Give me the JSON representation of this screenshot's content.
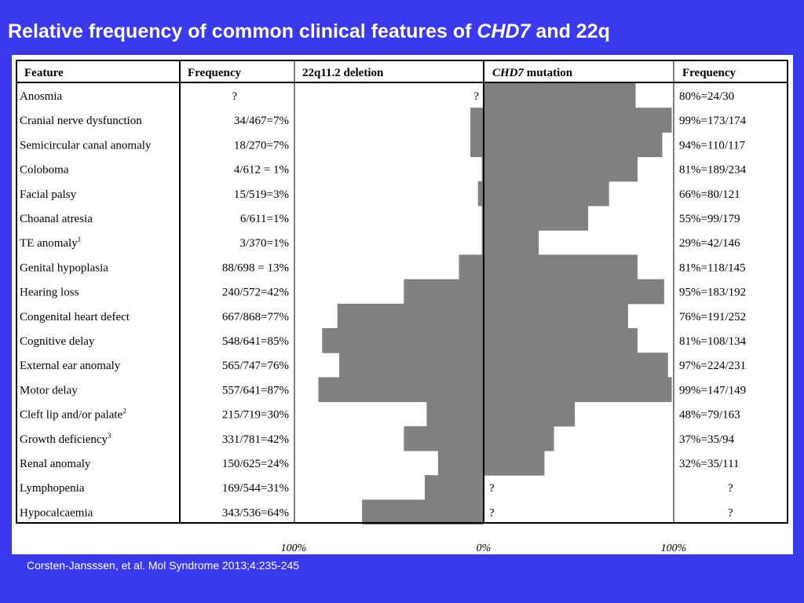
{
  "slide": {
    "title_main": "Relative frequency of common clinical features of ",
    "title_italic": "CHD7",
    "title_end": " and 22q",
    "citation": "Corsten-Jansssen, et al. Mol Syndrome 2013;4:235-245"
  },
  "table": {
    "headers": {
      "feature": "Feature",
      "freq_left": "Frequency",
      "deletion": "22q11.2 deletion",
      "mutation_italic": "CHD7",
      "mutation_rest": " mutation",
      "freq_right": "Frequency"
    },
    "axis_labels": [
      "100%",
      "0%",
      "100%"
    ]
  },
  "chart_data": {
    "type": "bar",
    "title": "Relative frequency of common clinical features of CHD7 and 22q",
    "orientation": "horizontal-butterfly",
    "xlim": [
      -100,
      100
    ],
    "axis_ticks": [
      "100%",
      "0%",
      "100%"
    ],
    "categories": [
      {
        "feature": "Anosmia",
        "sup": ""
      },
      {
        "feature": "Cranial nerve dysfunction",
        "sup": ""
      },
      {
        "feature": "Semicircular canal anomaly",
        "sup": ""
      },
      {
        "feature": "Coloboma",
        "sup": ""
      },
      {
        "feature": "Facial palsy",
        "sup": ""
      },
      {
        "feature": "Choanal atresia",
        "sup": ""
      },
      {
        "feature": "TE anomaly",
        "sup": "1"
      },
      {
        "feature": "Genital hypoplasia",
        "sup": ""
      },
      {
        "feature": "Hearing loss",
        "sup": ""
      },
      {
        "feature": "Congenital heart defect",
        "sup": ""
      },
      {
        "feature": "Cognitive delay",
        "sup": ""
      },
      {
        "feature": "External ear anomaly",
        "sup": ""
      },
      {
        "feature": "Motor delay",
        "sup": ""
      },
      {
        "feature": "Cleft lip and/or palate",
        "sup": "2"
      },
      {
        "feature": "Growth deficiency",
        "sup": "3"
      },
      {
        "feature": "Renal anomaly",
        "sup": ""
      },
      {
        "feature": "Lymphopenia",
        "sup": ""
      },
      {
        "feature": "Hypocalcaemia",
        "sup": ""
      }
    ],
    "series": [
      {
        "name": "22q11.2 deletion",
        "side": "left",
        "labels": [
          "?",
          "34/467=7%",
          "18/270=7%",
          "4/612 = 1%",
          "15/519=3%",
          "6/611=1%",
          "3/370=1%",
          "88/698 = 13%",
          "240/572=42%",
          "667/868=77%",
          "548/641=85%",
          "565/747=76%",
          "557/641=87%",
          "215/719=30%",
          "331/781=42%",
          "150/625=24%",
          "169/544=31%",
          "343/536=64%"
        ],
        "values": [
          null,
          7,
          7,
          1,
          3,
          1,
          1,
          13,
          42,
          77,
          85,
          76,
          87,
          30,
          42,
          24,
          31,
          64
        ]
      },
      {
        "name": "CHD7 mutation",
        "side": "right",
        "labels": [
          "80%=24/30",
          "99%=173/174",
          "94%=110/117",
          "81%=189/234",
          "66%=80/121",
          "55%=99/179",
          "29%=42/146",
          "81%=118/145",
          "95%=183/192",
          "76%=191/252",
          "81%=108/134",
          "97%=224/231",
          "99%=147/149",
          "48%=79/163",
          "37%=35/94",
          "32%=35/111",
          "?",
          "?"
        ],
        "values": [
          80,
          99,
          94,
          81,
          66,
          55,
          29,
          81,
          95,
          76,
          81,
          97,
          99,
          48,
          37,
          32,
          null,
          null
        ]
      }
    ],
    "bar_color": "#808080"
  }
}
